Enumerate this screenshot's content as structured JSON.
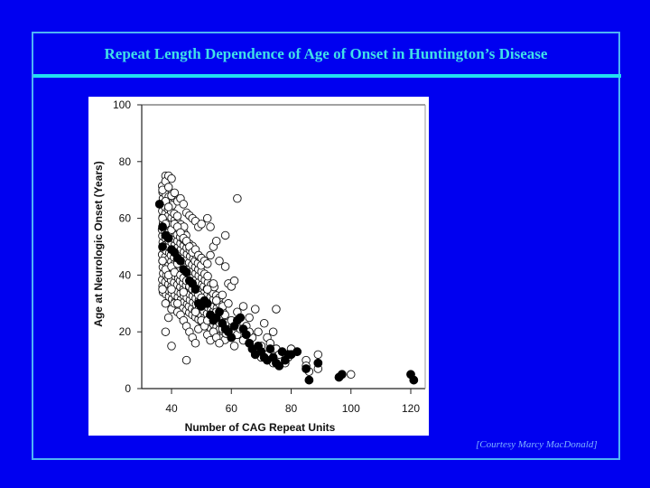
{
  "slide": {
    "title": "Repeat Length Dependence of Age of Onset in Huntington’s Disease",
    "credit": "[Courtesy Marcy MacDonald]",
    "colors": {
      "background": "#0000f0",
      "title": "#40e0e8",
      "frame": "#4fb3f5",
      "separator": "#22e0f0",
      "credit": "#7fb4ff"
    }
  },
  "chart_data": {
    "type": "scatter",
    "title": "",
    "xlabel": "Number of CAG Repeat Units",
    "ylabel": "Age at Neurologic Onset (Years)",
    "xlim": [
      30,
      125
    ],
    "ylim": [
      0,
      100
    ],
    "xticks": [
      40,
      60,
      80,
      100,
      120
    ],
    "yticks": [
      0,
      20,
      40,
      60,
      80,
      100
    ],
    "grid": false,
    "legend": null,
    "series": [
      {
        "name": "individual patients (open circles)",
        "marker": "open-circle",
        "points": [
          [
            37,
            70
          ],
          [
            38,
            75
          ],
          [
            38,
            73
          ],
          [
            39,
            75
          ],
          [
            39,
            71
          ],
          [
            40,
            74
          ],
          [
            38,
            66
          ],
          [
            39,
            64
          ],
          [
            40,
            68
          ],
          [
            41,
            69
          ],
          [
            42,
            66
          ],
          [
            43,
            67
          ],
          [
            44,
            65
          ],
          [
            45,
            62
          ],
          [
            46,
            61
          ],
          [
            47,
            60
          ],
          [
            48,
            59
          ],
          [
            49,
            57
          ],
          [
            50,
            58
          ],
          [
            52,
            60
          ],
          [
            53,
            57
          ],
          [
            54,
            50
          ],
          [
            55,
            52
          ],
          [
            58,
            54
          ],
          [
            62,
            67
          ],
          [
            37,
            60
          ],
          [
            38,
            58
          ],
          [
            39,
            55
          ],
          [
            40,
            56
          ],
          [
            41,
            58
          ],
          [
            42,
            57
          ],
          [
            43,
            55
          ],
          [
            44,
            53
          ],
          [
            45,
            52
          ],
          [
            46,
            50
          ],
          [
            47,
            48
          ],
          [
            48,
            49
          ],
          [
            49,
            47
          ],
          [
            50,
            46
          ],
          [
            51,
            45
          ],
          [
            52,
            44
          ],
          [
            53,
            47
          ],
          [
            56,
            45
          ],
          [
            58,
            43
          ],
          [
            59,
            37
          ],
          [
            37,
            45
          ],
          [
            38,
            42
          ],
          [
            39,
            40
          ],
          [
            40,
            43
          ],
          [
            41,
            41
          ],
          [
            42,
            44
          ],
          [
            43,
            40
          ],
          [
            44,
            39
          ],
          [
            45,
            38
          ],
          [
            46,
            36
          ],
          [
            47,
            35
          ],
          [
            48,
            34
          ],
          [
            49,
            33
          ],
          [
            50,
            32
          ],
          [
            52,
            35
          ],
          [
            54,
            37
          ],
          [
            55,
            31
          ],
          [
            57,
            33
          ],
          [
            59,
            30
          ],
          [
            60,
            36
          ],
          [
            61,
            38
          ],
          [
            37,
            35
          ],
          [
            38,
            30
          ],
          [
            39,
            25
          ],
          [
            40,
            28
          ],
          [
            41,
            30
          ],
          [
            42,
            27
          ],
          [
            43,
            26
          ],
          [
            44,
            24
          ],
          [
            45,
            22
          ],
          [
            46,
            20
          ],
          [
            47,
            18
          ],
          [
            48,
            16
          ],
          [
            49,
            21
          ],
          [
            50,
            24
          ],
          [
            51,
            22
          ],
          [
            52,
            19
          ],
          [
            53,
            17
          ],
          [
            54,
            20
          ],
          [
            55,
            18
          ],
          [
            56,
            16
          ],
          [
            57,
            21
          ],
          [
            58,
            23
          ],
          [
            59,
            20
          ],
          [
            60,
            18
          ],
          [
            61,
            15
          ],
          [
            62,
            19
          ],
          [
            63,
            21
          ],
          [
            64,
            17
          ],
          [
            65,
            22
          ],
          [
            66,
            25
          ],
          [
            67,
            18
          ],
          [
            68,
            28
          ],
          [
            69,
            20
          ],
          [
            70,
            15
          ],
          [
            71,
            23
          ],
          [
            72,
            18
          ],
          [
            73,
            16
          ],
          [
            74,
            20
          ],
          [
            75,
            14
          ],
          [
            76,
            12
          ],
          [
            77,
            13
          ],
          [
            78,
            9
          ],
          [
            79,
            11
          ],
          [
            80,
            14
          ],
          [
            82,
            13
          ],
          [
            85,
            10
          ],
          [
            85,
            8
          ],
          [
            86,
            6
          ],
          [
            89,
            12
          ],
          [
            89,
            7
          ],
          [
            100,
            5
          ],
          [
            40,
            35
          ],
          [
            40,
            15
          ],
          [
            42,
            30
          ],
          [
            45,
            10
          ],
          [
            38,
            20
          ],
          [
            44,
            34
          ],
          [
            48,
            27
          ],
          [
            52,
            24
          ],
          [
            55,
            27
          ],
          [
            60,
            24
          ],
          [
            62,
            27
          ],
          [
            64,
            29
          ],
          [
            66,
            20
          ],
          [
            75,
            28
          ],
          [
            72,
            12
          ],
          [
            74,
            9
          ],
          [
            68,
            13
          ],
          [
            70,
            11
          ]
        ]
      },
      {
        "name": "mean onset per repeat length (filled circles)",
        "marker": "filled-circle",
        "points": [
          [
            36,
            65
          ],
          [
            37,
            57
          ],
          [
            37,
            50
          ],
          [
            38,
            54
          ],
          [
            39,
            53
          ],
          [
            40,
            49
          ],
          [
            41,
            48
          ],
          [
            42,
            46
          ],
          [
            43,
            45
          ],
          [
            44,
            42
          ],
          [
            45,
            41
          ],
          [
            46,
            38
          ],
          [
            47,
            37
          ],
          [
            48,
            35
          ],
          [
            49,
            30
          ],
          [
            50,
            29
          ],
          [
            51,
            31
          ],
          [
            52,
            30
          ],
          [
            53,
            26
          ],
          [
            54,
            24
          ],
          [
            55,
            25
          ],
          [
            56,
            27
          ],
          [
            57,
            23
          ],
          [
            58,
            21
          ],
          [
            59,
            20
          ],
          [
            60,
            18
          ],
          [
            61,
            22
          ],
          [
            62,
            24
          ],
          [
            63,
            25
          ],
          [
            64,
            21
          ],
          [
            65,
            19
          ],
          [
            66,
            16
          ],
          [
            67,
            14
          ],
          [
            68,
            12
          ],
          [
            69,
            15
          ],
          [
            70,
            13
          ],
          [
            71,
            11
          ],
          [
            72,
            10
          ],
          [
            73,
            14
          ],
          [
            74,
            11
          ],
          [
            75,
            9
          ],
          [
            76,
            8
          ],
          [
            77,
            13
          ],
          [
            78,
            10
          ],
          [
            79,
            12
          ],
          [
            80,
            12
          ],
          [
            82,
            13
          ],
          [
            85,
            7
          ],
          [
            86,
            3
          ],
          [
            89,
            9
          ],
          [
            96,
            4
          ],
          [
            97,
            5
          ],
          [
            120,
            5
          ],
          [
            121,
            3
          ]
        ]
      }
    ]
  }
}
